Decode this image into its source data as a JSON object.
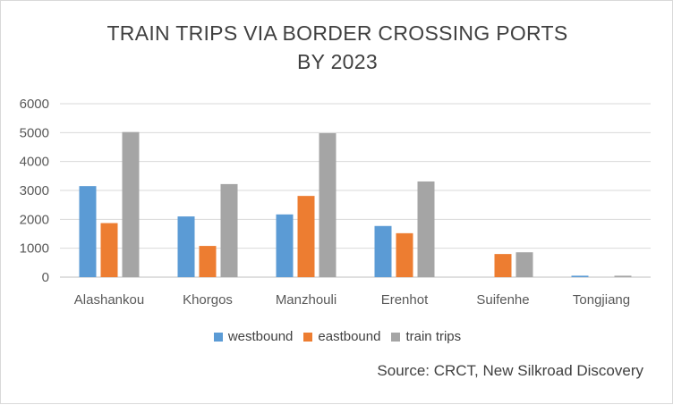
{
  "chart_data": {
    "type": "bar",
    "title_lines": [
      "TRAIN TRIPS VIA BORDER CROSSING PORTS",
      "BY 2023"
    ],
    "categories": [
      "Alashankou",
      "Khorgos",
      "Manzhouli",
      "Erenhot",
      "Suifenhe",
      "Tongjiang"
    ],
    "series": [
      {
        "name": "westbound",
        "color": "#5b9bd5",
        "values": [
          3150,
          2100,
          2170,
          1770,
          0,
          50
        ]
      },
      {
        "name": "eastbound",
        "color": "#ed7d31",
        "values": [
          1870,
          1080,
          2810,
          1520,
          800,
          0
        ]
      },
      {
        "name": "train trips",
        "color": "#a5a5a5",
        "values": [
          5020,
          3220,
          4980,
          3310,
          860,
          50
        ]
      }
    ],
    "y_ticks": [
      "0",
      "1000",
      "2000",
      "3000",
      "4000",
      "5000",
      "6000"
    ],
    "ylim": [
      0,
      6000
    ],
    "grid": true,
    "legend_position": "bottom",
    "source": "Source: CRCT, New Silkroad Discovery"
  }
}
